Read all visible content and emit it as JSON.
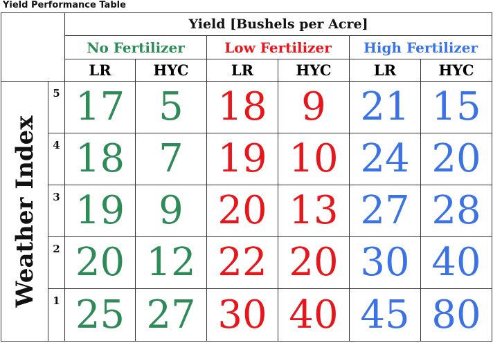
{
  "title": "Yield Performance Table",
  "header": {
    "yield_label": "Yield [Bushels per Acre]",
    "groups": [
      {
        "label": "No Fertilizer",
        "color": "#2e8b57"
      },
      {
        "label": "Low Fertilizer",
        "color": "#e8161b"
      },
      {
        "label": "High Fertilizer",
        "color": "#3b73e6"
      }
    ],
    "sub_headers": [
      "LR",
      "HYC",
      "LR",
      "HYC",
      "LR",
      "HYC"
    ]
  },
  "side_label": "Weather Index",
  "rows": [
    {
      "index": "5",
      "values": [
        "17",
        "5",
        "18",
        "9",
        "21",
        "15"
      ]
    },
    {
      "index": "4",
      "values": [
        "18",
        "7",
        "19",
        "10",
        "24",
        "20"
      ]
    },
    {
      "index": "3",
      "values": [
        "19",
        "9",
        "20",
        "13",
        "27",
        "28"
      ]
    },
    {
      "index": "2",
      "values": [
        "20",
        "12",
        "22",
        "20",
        "30",
        "40"
      ]
    },
    {
      "index": "1",
      "values": [
        "25",
        "27",
        "30",
        "40",
        "45",
        "80"
      ]
    }
  ]
}
